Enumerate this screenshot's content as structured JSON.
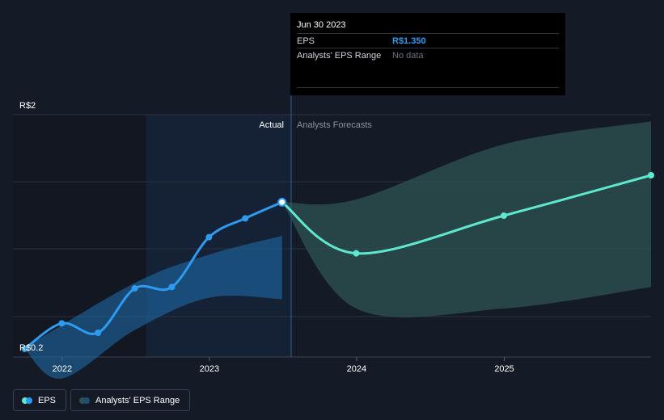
{
  "chart_data": {
    "type": "line",
    "y_axis": {
      "top_label": "R$2",
      "bottom_label": "R$0.2",
      "ylim": [
        0.2,
        2.0
      ]
    },
    "x_axis": {
      "tick_labels": [
        "2022",
        "2023",
        "2024",
        "2025"
      ],
      "xlim": [
        "2021-09-01",
        "2025-12-31"
      ]
    },
    "section_labels": {
      "actual": "Actual",
      "forecast": "Analysts Forecasts"
    },
    "divider_date": "2023-06-30",
    "series": [
      {
        "name": "EPS",
        "kind": "actual",
        "color": "#2d9cf0",
        "points": [
          [
            "2021-09-30",
            0.26
          ],
          [
            "2021-12-31",
            0.45
          ],
          [
            "2022-03-31",
            0.38
          ],
          [
            "2022-06-30",
            0.71
          ],
          [
            "2022-09-30",
            0.72
          ],
          [
            "2022-12-31",
            1.09
          ],
          [
            "2023-03-31",
            1.23
          ],
          [
            "2023-06-30",
            1.35
          ]
        ]
      },
      {
        "name": "EPS",
        "kind": "forecast",
        "color": "#5ee8d0",
        "points": [
          [
            "2023-06-30",
            1.35
          ],
          [
            "2023-12-31",
            0.97
          ],
          [
            "2024-12-31",
            1.25
          ],
          [
            "2025-12-31",
            1.55
          ]
        ]
      }
    ],
    "actual_band": {
      "color": "#1f6fb0",
      "upper": [
        [
          "2021-09-30",
          0.27
        ],
        [
          "2022-06-30",
          0.75
        ],
        [
          "2022-12-31",
          0.96
        ],
        [
          "2023-06-30",
          1.1
        ]
      ],
      "lower": [
        [
          "2021-09-30",
          0.26
        ],
        [
          "2021-12-31",
          0.04
        ],
        [
          "2022-06-30",
          0.4
        ],
        [
          "2022-12-31",
          0.64
        ],
        [
          "2023-06-30",
          0.63
        ]
      ]
    },
    "forecast_band": {
      "color": "#2e5452",
      "upper": [
        [
          "2023-06-30",
          1.35
        ],
        [
          "2023-12-31",
          1.37
        ],
        [
          "2024-12-31",
          1.78
        ],
        [
          "2025-12-31",
          1.95
        ]
      ],
      "lower": [
        [
          "2023-06-30",
          1.35
        ],
        [
          "2023-12-31",
          0.56
        ],
        [
          "2024-12-31",
          0.56
        ],
        [
          "2025-12-31",
          0.72
        ]
      ]
    }
  },
  "tooltip": {
    "date": "Jun 30 2023",
    "eps_label": "EPS",
    "eps_value": "R$1.350",
    "eps_value_color": "#2d9cf0",
    "range_label": "Analysts' EPS Range",
    "range_value": "No data"
  },
  "legend": {
    "eps_label": "EPS",
    "range_label": "Analysts' EPS Range"
  }
}
